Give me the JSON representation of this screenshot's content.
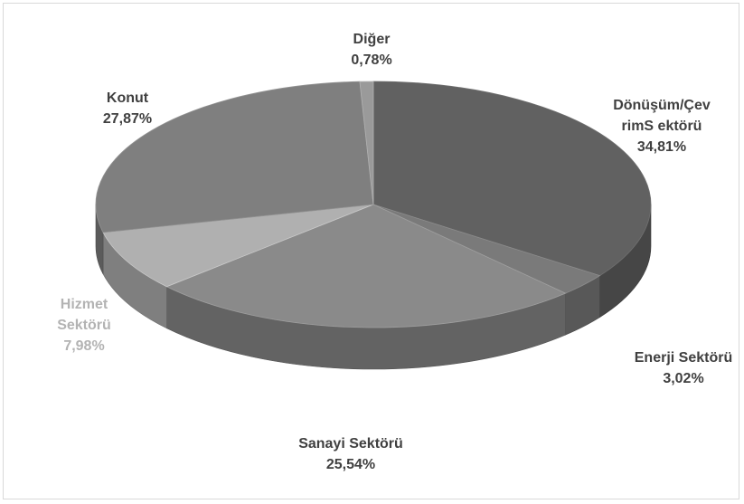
{
  "chart_data": {
    "type": "pie",
    "style": "3d",
    "legend": "none",
    "slices": [
      {
        "label": "Dönüşüm/Çev rimS ektörü",
        "label_lines": [
          "Dönüşüm/Çev",
          "rimS ektörü"
        ],
        "value": 34.81,
        "value_text": "34,81%",
        "color": "#616161",
        "label_color": "#404040"
      },
      {
        "label": "Enerji Sektörü",
        "label_lines": [
          "Enerji Sektörü"
        ],
        "value": 3.02,
        "value_text": "3,02%",
        "color": "#7a7a7a",
        "label_color": "#404040"
      },
      {
        "label": "Sanayi Sektörü",
        "label_lines": [
          "Sanayi Sektörü"
        ],
        "value": 25.54,
        "value_text": "25,54%",
        "color": "#8a8a8a",
        "label_color": "#404040"
      },
      {
        "label": "Hizmet Sektörü",
        "label_lines": [
          "Hizmet",
          "Sektörü"
        ],
        "value": 7.98,
        "value_text": "7,98%",
        "color": "#b0b0b0",
        "label_color": "#b3b3b3"
      },
      {
        "label": "Konut",
        "label_lines": [
          "Konut"
        ],
        "value": 27.87,
        "value_text": "27,87%",
        "color": "#7f7f7f",
        "label_color": "#404040"
      },
      {
        "label": "Diğer",
        "label_lines": [
          "Diğer"
        ],
        "value": 0.78,
        "value_text": "0,78%",
        "color": "#9a9a9a",
        "label_color": "#404040"
      }
    ]
  }
}
